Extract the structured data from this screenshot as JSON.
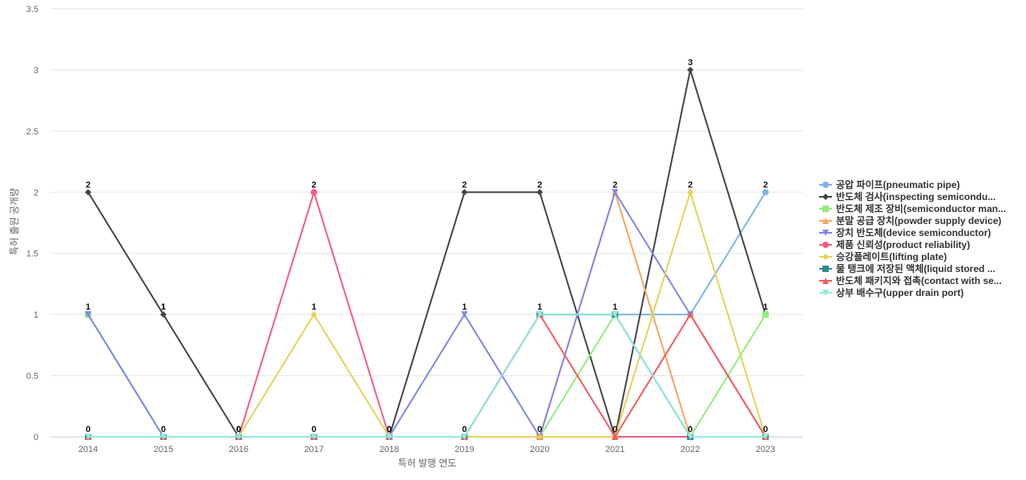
{
  "chart_data": {
    "type": "line",
    "title": "",
    "xlabel": "특허 발행 연도",
    "ylabel": "특허 출원 공개량",
    "categories": [
      "2014",
      "2015",
      "2016",
      "2017",
      "2018",
      "2019",
      "2020",
      "2021",
      "2022",
      "2023"
    ],
    "ylim": [
      0,
      3.5
    ],
    "yticks": [
      "0",
      "0.5",
      "1",
      "1.5",
      "2",
      "2.5",
      "3",
      "3.5"
    ],
    "grid": true,
    "legend_position": "right",
    "data_labels": {
      "values": [
        2,
        1,
        0,
        2,
        0,
        2,
        2,
        2,
        3,
        2
      ],
      "upper_values": [
        1,
        1,
        0,
        1,
        0,
        1,
        1,
        1,
        2,
        1
      ],
      "zero_values": [
        0,
        0,
        0,
        0,
        0,
        0,
        0,
        0,
        0,
        0
      ]
    },
    "series": [
      {
        "name": "공압 파이프(pneumatic pipe)",
        "color": "#7cb5ec",
        "marker": "circle",
        "values": [
          1,
          0,
          0,
          0,
          0,
          0,
          1,
          1,
          1,
          2
        ]
      },
      {
        "name": "반도체 검사(inspecting semicondu...",
        "color": "#434348",
        "marker": "diamond",
        "values": [
          2,
          1,
          0,
          0,
          0,
          2,
          2,
          0,
          3,
          1
        ]
      },
      {
        "name": "반도체 제조 장비(semiconductor man...",
        "color": "#90ed7d",
        "marker": "square",
        "values": [
          1,
          0,
          0,
          0,
          0,
          0,
          0,
          1,
          0,
          1
        ]
      },
      {
        "name": "분말 공급 장치(powder supply device)",
        "color": "#f7a35c",
        "marker": "triangle",
        "values": [
          0,
          0,
          0,
          0,
          0,
          0,
          0,
          2,
          0,
          0
        ]
      },
      {
        "name": "장치 반도체(device semiconductor)",
        "color": "#8085e9",
        "marker": "triangle-down",
        "values": [
          1,
          0,
          0,
          0,
          0,
          1,
          0,
          2,
          1,
          0
        ]
      },
      {
        "name": "제품 신뢰성(product reliability)",
        "color": "#f15c80",
        "marker": "circle",
        "values": [
          0,
          0,
          0,
          2,
          0,
          0,
          0,
          0,
          0,
          0
        ]
      },
      {
        "name": "승강플레이트(lifting plate)",
        "color": "#e4d354",
        "marker": "diamond",
        "values": [
          0,
          0,
          0,
          1,
          0,
          0,
          0,
          0,
          2,
          0
        ]
      },
      {
        "name": "물 탱크에 저장된 액체(liquid stored ...",
        "color": "#2b908f",
        "marker": "square",
        "values": [
          0,
          0,
          0,
          0,
          0,
          0,
          1,
          1,
          0,
          0
        ]
      },
      {
        "name": "반도체 패키지와 접촉(contact with se...",
        "color": "#f45b5b",
        "marker": "triangle",
        "values": [
          0,
          0,
          0,
          0,
          0,
          0,
          1,
          0,
          1,
          0
        ]
      },
      {
        "name": "상부 배수구(upper drain port)",
        "color": "#91e8e1",
        "marker": "triangle-down",
        "values": [
          0,
          0,
          0,
          0,
          0,
          0,
          1,
          1,
          0,
          0
        ]
      }
    ]
  }
}
